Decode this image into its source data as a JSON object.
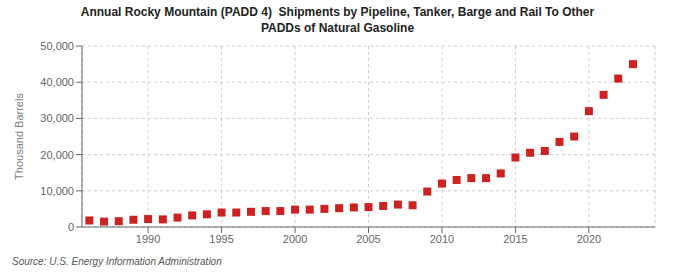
{
  "chart_data": {
    "type": "scatter",
    "title": "Annual Rocky Mountain (PADD 4)  Shipments by Pipeline, Tanker, Barge and Rail To Other\nPADDs of Natural Gasoline",
    "ylabel": "Thousand Barrels",
    "source": "Source: U.S. Energy Information Administration",
    "x": [
      1986,
      1987,
      1988,
      1989,
      1990,
      1991,
      1992,
      1993,
      1994,
      1995,
      1996,
      1997,
      1998,
      1999,
      2000,
      2001,
      2002,
      2003,
      2004,
      2005,
      2006,
      2007,
      2008,
      2009,
      2010,
      2011,
      2012,
      2013,
      2014,
      2015,
      2016,
      2017,
      2018,
      2019,
      2020,
      2021,
      2022,
      2023
    ],
    "values": [
      1800,
      1500,
      1600,
      2000,
      2200,
      2100,
      2600,
      3200,
      3500,
      4000,
      4000,
      4200,
      4400,
      4400,
      4800,
      4800,
      5000,
      5200,
      5400,
      5500,
      5800,
      6200,
      6000,
      9800,
      12000,
      13000,
      13500,
      13500,
      14800,
      19200,
      20500,
      21000,
      23500,
      25000,
      32000,
      36500,
      41000,
      45000
    ],
    "color": "#cc2222",
    "marker": "square",
    "xlim": [
      1985.5,
      2024.5
    ],
    "xticks": [
      1990,
      1995,
      2000,
      2005,
      2010,
      2015,
      2020
    ],
    "ylim": [
      0,
      50000
    ],
    "yticks": [
      0,
      {
        "value": 10000,
        "label": "10,000"
      },
      {
        "value": 20000,
        "label": "20,000"
      },
      {
        "value": 30000,
        "label": "30,000"
      },
      {
        "value": 40000,
        "label": "40,000"
      },
      {
        "value": 50000,
        "label": "50,000"
      }
    ],
    "grid": true
  }
}
